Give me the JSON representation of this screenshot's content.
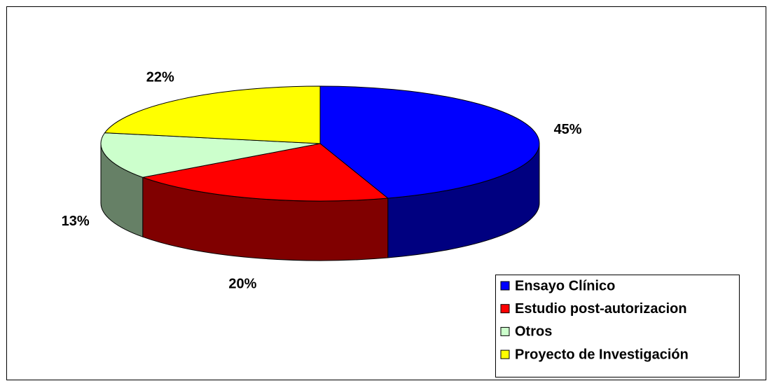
{
  "chart_data": {
    "type": "pie3d",
    "categories": [
      "Ensayo Clínico",
      "Estudio post-autorizacion",
      "Otros",
      "Proyecto de Investigación"
    ],
    "values": [
      45,
      20,
      13,
      22
    ],
    "value_labels": [
      "45%",
      "20%",
      "13%",
      "22%"
    ],
    "colors": [
      "#0000ff",
      "#ff0000",
      "#ccffcc",
      "#ffff00"
    ],
    "legend": "bottom-right"
  }
}
